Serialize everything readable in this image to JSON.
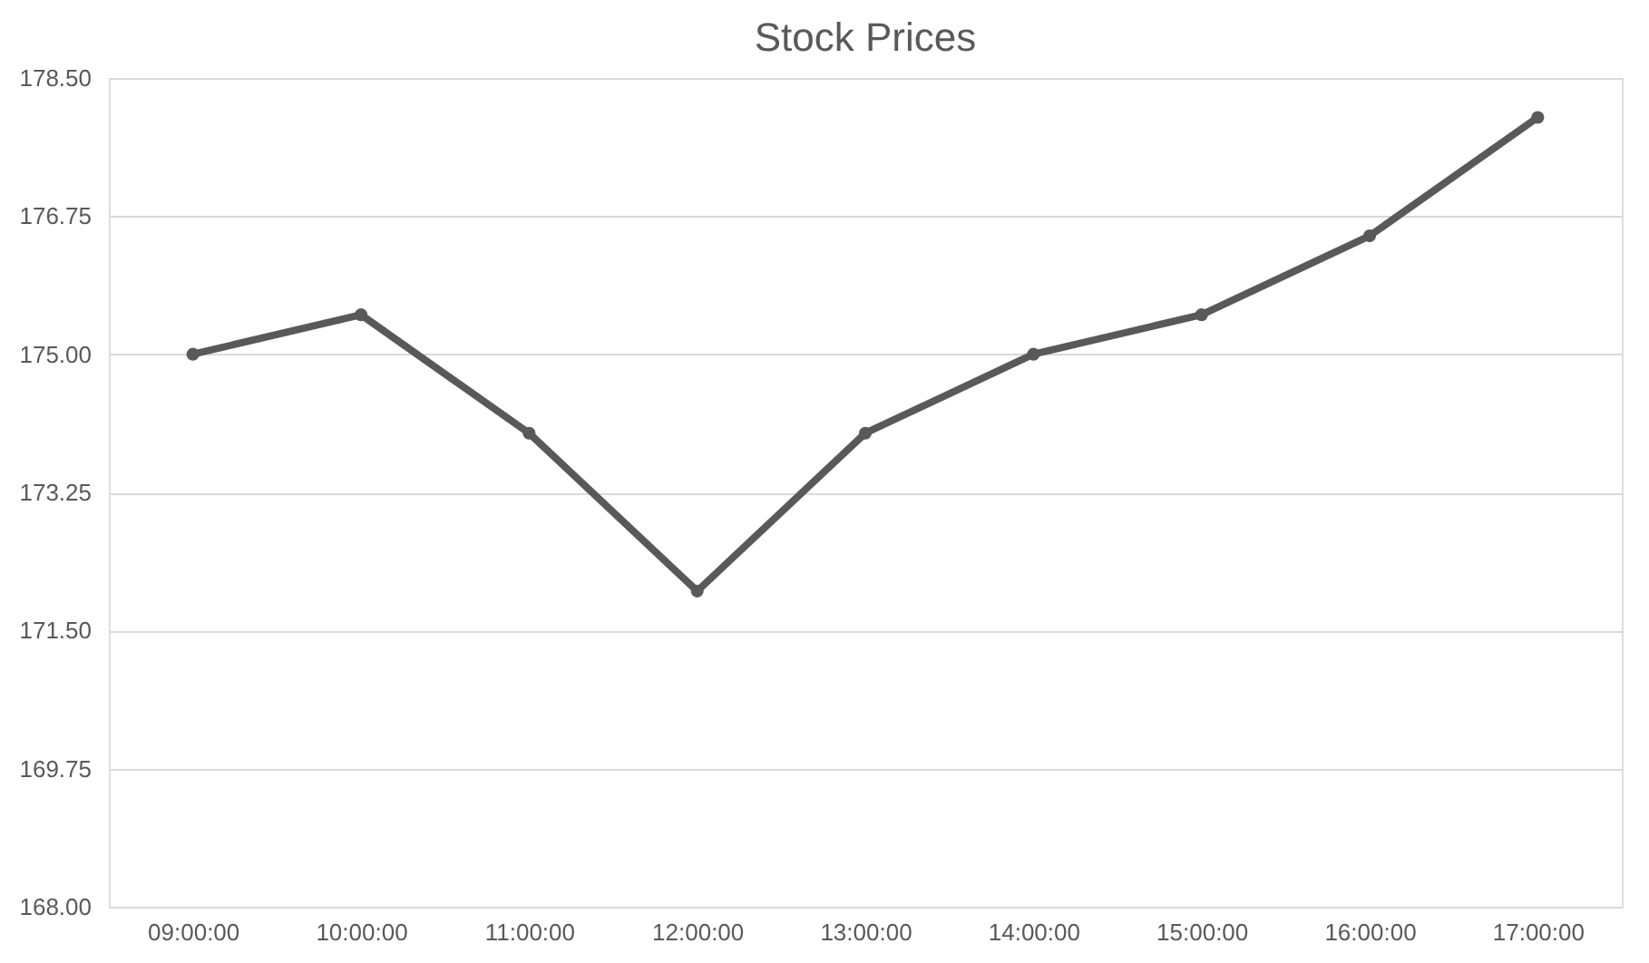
{
  "chart_data": {
    "type": "line",
    "title": "Stock Prices",
    "categories": [
      "09:00:00",
      "10:00:00",
      "11:00:00",
      "12:00:00",
      "13:00:00",
      "14:00:00",
      "15:00:00",
      "16:00:00",
      "17:00:00"
    ],
    "series": [
      {
        "color": "#595959",
        "values": [
          175.0,
          175.5,
          174.0,
          172.0,
          174.0,
          175.0,
          175.5,
          176.5,
          178.0
        ]
      }
    ],
    "ylim": [
      168.0,
      178.5
    ],
    "yticks": [
      {
        "value": 168.0,
        "label": "168.00"
      },
      {
        "value": 169.75,
        "label": "169.75"
      },
      {
        "value": 171.5,
        "label": "171.50"
      },
      {
        "value": 173.25,
        "label": "173.25"
      },
      {
        "value": 175.0,
        "label": "175.00"
      },
      {
        "value": 176.75,
        "label": "176.75"
      },
      {
        "value": 178.5,
        "label": "178.50"
      }
    ],
    "grid": "y",
    "marker": "circle",
    "line_style": "solid"
  }
}
